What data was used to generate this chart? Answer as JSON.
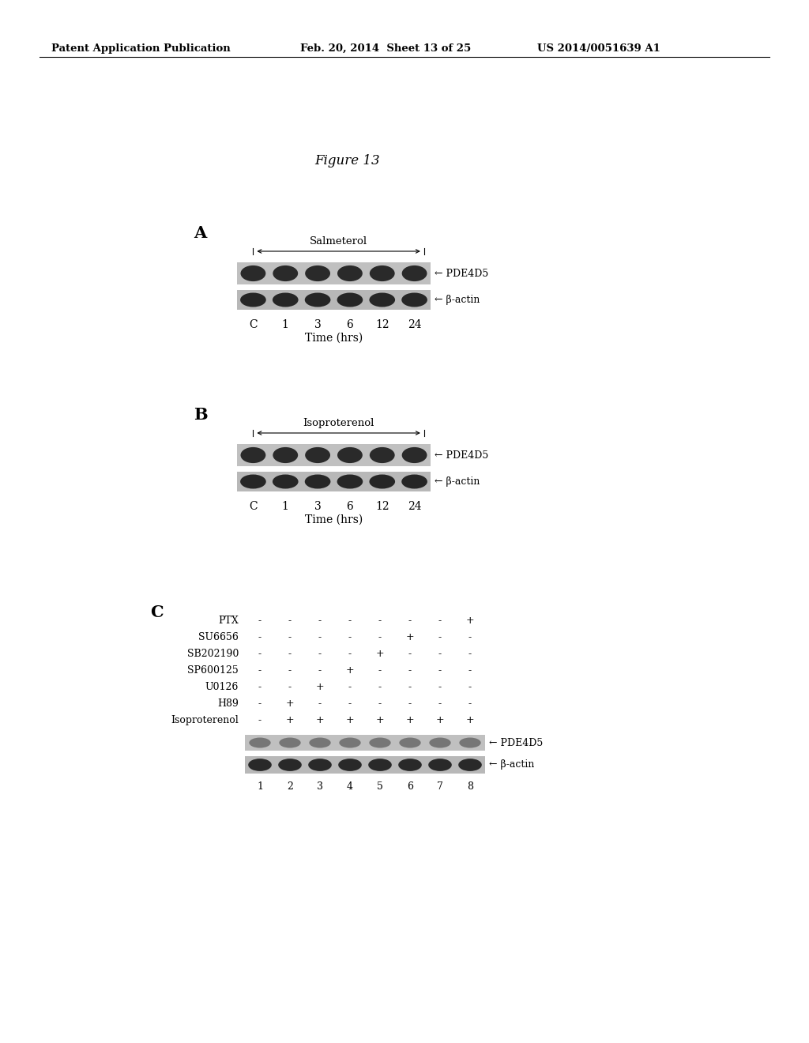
{
  "header_left": "Patent Application Publication",
  "header_mid": "Feb. 20, 2014  Sheet 13 of 25",
  "header_right": "US 2014/0051639 A1",
  "figure_title": "Figure 13",
  "panel_A_label": "A",
  "panel_B_label": "B",
  "panel_C_label": "C",
  "panel_A_drug": "Salmeterol",
  "panel_B_drug": "Isoproterenol",
  "time_labels": [
    "C",
    "1",
    "3",
    "6",
    "12",
    "24"
  ],
  "time_xlabel": "Time (hrs)",
  "band_label_PDE4D5": "← PDE4D5",
  "band_label_bactin": "← β-actin",
  "panel_C_rows": [
    "PTX",
    "SU6656",
    "SB202190",
    "SP600125",
    "U0126",
    "H89",
    "Isoproterenol"
  ],
  "panel_C_cols": [
    "1",
    "2",
    "3",
    "4",
    "5",
    "6",
    "7",
    "8"
  ],
  "panel_C_values": [
    [
      "-",
      "-",
      "-",
      "-",
      "-",
      "-",
      "-",
      "+"
    ],
    [
      "-",
      "-",
      "-",
      "-",
      "-",
      "+",
      "-",
      "-"
    ],
    [
      "-",
      "-",
      "-",
      "-",
      "+",
      "-",
      "-",
      "-"
    ],
    [
      "-",
      "-",
      "-",
      "+",
      "-",
      "-",
      "-",
      "-"
    ],
    [
      "-",
      "-",
      "+",
      "-",
      "-",
      "-",
      "-",
      "-"
    ],
    [
      "-",
      "+",
      "-",
      "-",
      "-",
      "-",
      "-",
      "-"
    ],
    [
      "-",
      "+",
      "+",
      "+",
      "+",
      "+",
      "+",
      "+"
    ]
  ],
  "background_color": "#ffffff",
  "text_color": "#000000",
  "gel_bg_pde": "#c0c0c0",
  "gel_bg_ba": "#b8b8b8",
  "band_dark": "#1a1a1a",
  "band_mid": "#3a3a3a"
}
